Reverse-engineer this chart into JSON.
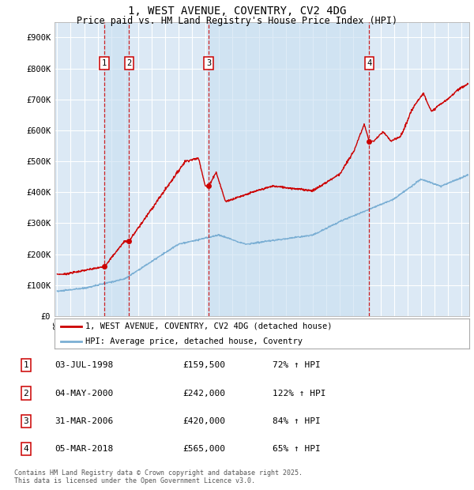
{
  "title": "1, WEST AVENUE, COVENTRY, CV2 4DG",
  "subtitle": "Price paid vs. HM Land Registry's House Price Index (HPI)",
  "title_fontsize": 10,
  "subtitle_fontsize": 8.5,
  "background_color": "#ffffff",
  "plot_bg_color": "#dce9f5",
  "grid_color": "#ffffff",
  "ylabel_ticks": [
    "£0",
    "£100K",
    "£200K",
    "£300K",
    "£400K",
    "£500K",
    "£600K",
    "£700K",
    "£800K",
    "£900K"
  ],
  "ylim": [
    0,
    950000
  ],
  "xlim_start": 1994.8,
  "xlim_end": 2025.6,
  "sale_color": "#cc0000",
  "hpi_color": "#7bafd4",
  "legend_sale_label": "1, WEST AVENUE, COVENTRY, CV2 4DG (detached house)",
  "legend_hpi_label": "HPI: Average price, detached house, Coventry",
  "transactions": [
    {
      "num": 1,
      "date": "03-JUL-1998",
      "price": 159500,
      "pct": "72%",
      "year": 1998.5
    },
    {
      "num": 2,
      "date": "04-MAY-2000",
      "price": 242000,
      "pct": "122%",
      "year": 2000.33
    },
    {
      "num": 3,
      "date": "31-MAR-2006",
      "price": 420000,
      "pct": "84%",
      "year": 2006.25
    },
    {
      "num": 4,
      "date": "05-MAR-2018",
      "price": 565000,
      "pct": "65%",
      "year": 2018.17
    }
  ],
  "footnote": "Contains HM Land Registry data © Crown copyright and database right 2025.\nThis data is licensed under the Open Government Licence v3.0.",
  "span_color": "#c8dff0",
  "span_alpha": 0.6
}
